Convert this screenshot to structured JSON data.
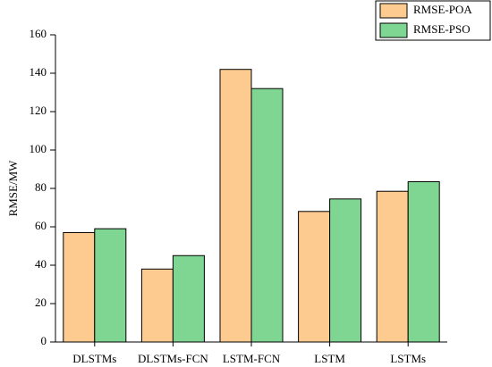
{
  "chart_data": {
    "type": "bar",
    "y_label": "RMSE/MW",
    "categories": [
      "DLSTMs",
      "DLSTMs-FCN",
      "LSTM-FCN",
      "LSTM",
      "LSTMs"
    ],
    "series": [
      {
        "name": "RMSE-POA",
        "color": "#fdcb8f",
        "values": [
          57,
          38,
          142,
          68,
          78.5
        ]
      },
      {
        "name": "RMSE-PSO",
        "color": "#7fd693",
        "values": [
          59,
          45,
          132,
          74.5,
          83.5
        ]
      }
    ],
    "ylim": [
      0,
      160
    ],
    "yticks": [
      0,
      20,
      40,
      60,
      80,
      100,
      120,
      140,
      160
    ]
  }
}
